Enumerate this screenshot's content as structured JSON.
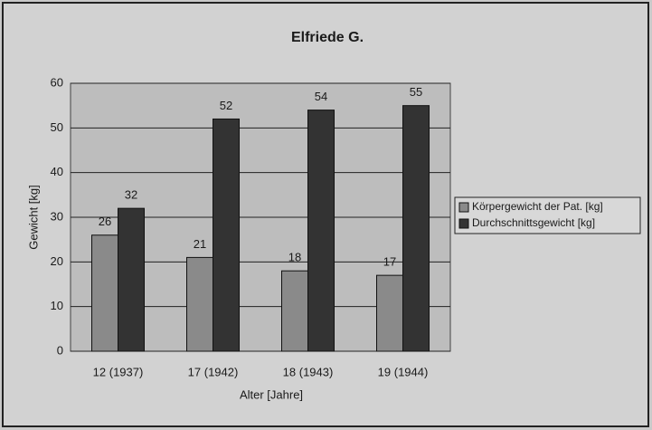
{
  "chart_data": {
    "type": "bar",
    "title": "Elfriede G.",
    "x_label": "Alter [Jahre]",
    "y_label": "Gewicht [kg]",
    "categories": [
      "12 (1937)",
      "17 (1942)",
      "18 (1943)",
      "19 (1944)"
    ],
    "series": [
      {
        "name": "Körpergewicht der Pat. [kg]",
        "color": "#8a8a8a",
        "values": [
          26,
          21,
          18,
          17
        ]
      },
      {
        "name": "Durchschnittsgewicht [kg]",
        "color": "#333333",
        "values": [
          32,
          52,
          54,
          55
        ]
      }
    ],
    "ylim": [
      0,
      60
    ],
    "yticks": [
      0,
      10,
      20,
      30,
      40,
      50,
      60
    ],
    "grid": true,
    "legend": "right"
  }
}
